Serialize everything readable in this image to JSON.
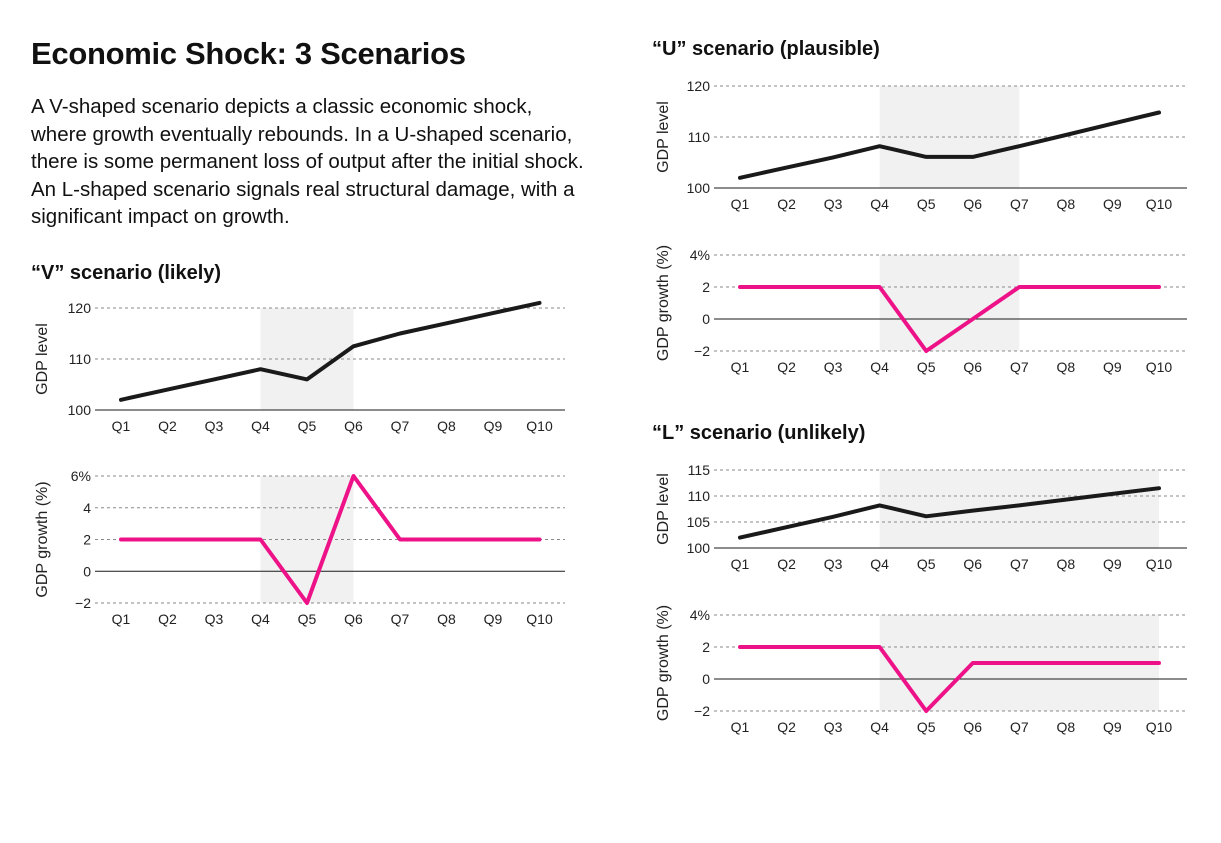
{
  "page": {
    "title": "Economic Shock: 3 Scenarios",
    "intro": "A V-shaped scenario depicts a classic economic shock, where growth eventually rebounds. In a U-shaped scenario, there is some permanent loss of output after the initial shock. An L-shaped scenario signals real structural damage, with a significant impact on growth."
  },
  "colors": {
    "level_line": "#1a1a1a",
    "growth_line": "#ee1289",
    "shock_band": "#f0f1f0",
    "grid": "#8a8a8a",
    "zero_line": "#1a1a1a"
  },
  "chart_data": [
    {
      "id": "v-level",
      "scenario_title": "“V” scenario (likely)",
      "type": "line",
      "categories": [
        "Q1",
        "Q2",
        "Q3",
        "Q4",
        "Q5",
        "Q6",
        "Q7",
        "Q8",
        "Q9",
        "Q10"
      ],
      "series": [
        {
          "values": [
            102,
            104,
            106,
            108,
            106,
            112.5,
            115,
            117,
            119,
            121
          ]
        }
      ],
      "ylabel": "GDP level",
      "ylim": [
        100,
        120
      ],
      "yticks": [
        100,
        110,
        120
      ],
      "ytick_labels": [
        "100",
        "110",
        "120"
      ],
      "shaded_range": [
        "Q4",
        "Q6"
      ],
      "grid": "dashed",
      "color_key": "level_line"
    },
    {
      "id": "v-growth",
      "type": "line",
      "categories": [
        "Q1",
        "Q2",
        "Q3",
        "Q4",
        "Q5",
        "Q6",
        "Q7",
        "Q8",
        "Q9",
        "Q10"
      ],
      "series": [
        {
          "values": [
            2,
            2,
            2,
            2,
            -2,
            6,
            2,
            2,
            2,
            2
          ]
        }
      ],
      "ylabel": "GDP growth (%)",
      "ylim": [
        -2,
        6
      ],
      "yticks": [
        -2,
        0,
        2,
        4,
        6
      ],
      "ytick_labels": [
        "−2",
        "0",
        "2",
        "4",
        "6%"
      ],
      "shaded_range": [
        "Q4",
        "Q6"
      ],
      "grid": "dashed",
      "color_key": "growth_line"
    },
    {
      "id": "u-level",
      "scenario_title": "“U” scenario (plausible)",
      "type": "line",
      "categories": [
        "Q1",
        "Q2",
        "Q3",
        "Q4",
        "Q5",
        "Q6",
        "Q7",
        "Q8",
        "Q9",
        "Q10"
      ],
      "series": [
        {
          "values": [
            102,
            104,
            106,
            108.2,
            106.1,
            106.1,
            108.2,
            110.4,
            112.6,
            114.8
          ]
        }
      ],
      "ylabel": "GDP level",
      "ylim": [
        100,
        120
      ],
      "yticks": [
        100,
        110,
        120
      ],
      "ytick_labels": [
        "100",
        "110",
        "120"
      ],
      "shaded_range": [
        "Q4",
        "Q7"
      ],
      "grid": "dashed",
      "color_key": "level_line"
    },
    {
      "id": "u-growth",
      "type": "line",
      "categories": [
        "Q1",
        "Q2",
        "Q3",
        "Q4",
        "Q5",
        "Q6",
        "Q7",
        "Q8",
        "Q9",
        "Q10"
      ],
      "series": [
        {
          "values": [
            2,
            2,
            2,
            2,
            -2,
            0,
            2,
            2,
            2,
            2
          ]
        }
      ],
      "ylabel": "GDP growth (%)",
      "ylim": [
        -2,
        4
      ],
      "yticks": [
        -2,
        0,
        2,
        4
      ],
      "ytick_labels": [
        "−2",
        "0",
        "2",
        "4%"
      ],
      "shaded_range": [
        "Q4",
        "Q7"
      ],
      "grid": "dashed",
      "color_key": "growth_line"
    },
    {
      "id": "l-level",
      "scenario_title": "“L” scenario (unlikely)",
      "type": "line",
      "categories": [
        "Q1",
        "Q2",
        "Q3",
        "Q4",
        "Q5",
        "Q6",
        "Q7",
        "Q8",
        "Q9",
        "Q10"
      ],
      "series": [
        {
          "values": [
            102,
            104,
            106,
            108.2,
            106.1,
            107.2,
            108.2,
            109.3,
            110.4,
            111.5
          ]
        }
      ],
      "ylabel": "GDP level",
      "ylim": [
        100,
        115
      ],
      "yticks": [
        100,
        105,
        110,
        115
      ],
      "ytick_labels": [
        "100",
        "105",
        "110",
        "115"
      ],
      "shaded_range": [
        "Q4",
        "Q10"
      ],
      "grid": "dashed",
      "color_key": "level_line"
    },
    {
      "id": "l-growth",
      "type": "line",
      "categories": [
        "Q1",
        "Q2",
        "Q3",
        "Q4",
        "Q5",
        "Q6",
        "Q7",
        "Q8",
        "Q9",
        "Q10"
      ],
      "series": [
        {
          "values": [
            2,
            2,
            2,
            2,
            -2,
            1,
            1,
            1,
            1,
            1
          ]
        }
      ],
      "ylabel": "GDP growth (%)",
      "ylim": [
        -2,
        4
      ],
      "yticks": [
        -2,
        0,
        2,
        4
      ],
      "ytick_labels": [
        "−2",
        "0",
        "2",
        "4%"
      ],
      "shaded_range": [
        "Q4",
        "Q10"
      ],
      "grid": "dashed",
      "color_key": "growth_line"
    }
  ]
}
